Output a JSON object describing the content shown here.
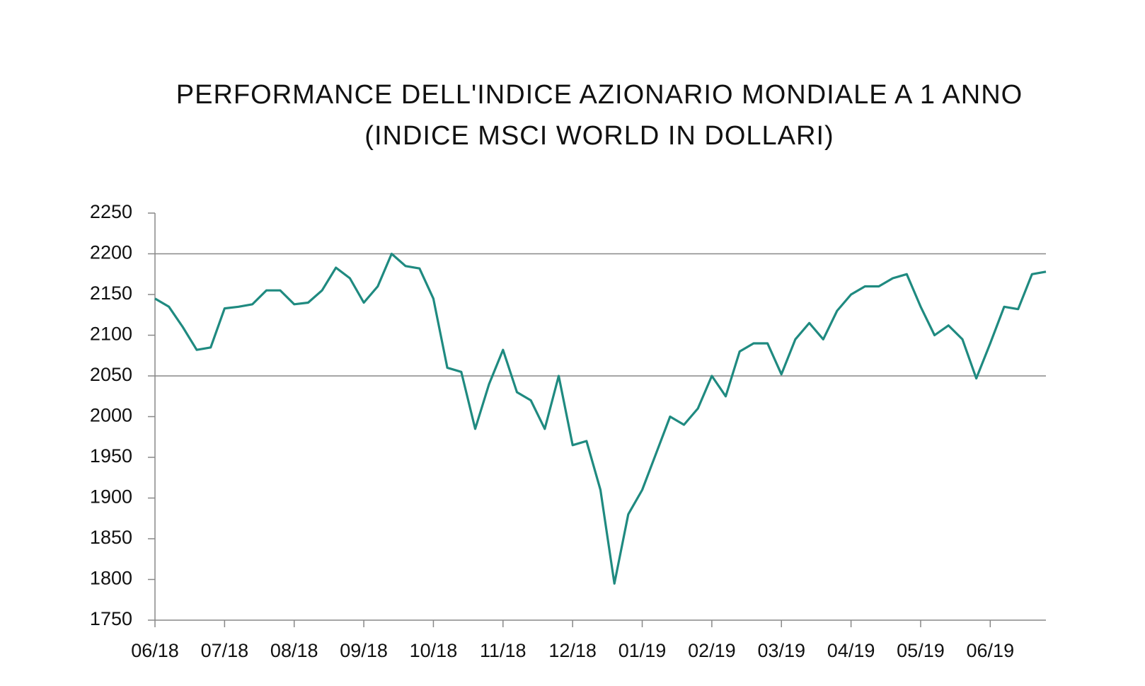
{
  "chart_data": {
    "type": "line",
    "title": "PERFORMANCE DELL'INDICE AZIONARIO MONDIALE A 1 ANNO",
    "subtitle": "(INDICE MSCI WORLD IN DOLLARI)",
    "categories": [
      "06/18",
      null,
      null,
      null,
      null,
      "07/18",
      null,
      null,
      null,
      null,
      "08/18",
      null,
      null,
      null,
      null,
      "09/18",
      null,
      null,
      null,
      null,
      "10/18",
      null,
      null,
      null,
      null,
      "11/18",
      null,
      null,
      null,
      null,
      "12/18",
      null,
      null,
      null,
      null,
      "01/19",
      null,
      null,
      null,
      null,
      "02/19",
      null,
      null,
      null,
      null,
      "03/19",
      null,
      null,
      null,
      null,
      "04/19",
      null,
      null,
      null,
      null,
      "05/19",
      null,
      null,
      null,
      null,
      "06/19",
      null,
      null,
      null,
      null
    ],
    "series": [
      {
        "name": "MSCI World",
        "color": "#1f8a80",
        "values": [
          2145,
          2135,
          2110,
          2082,
          2085,
          2133,
          2135,
          2138,
          2155,
          2155,
          2138,
          2140,
          2155,
          2183,
          2170,
          2140,
          2160,
          2200,
          2185,
          2182,
          2145,
          2060,
          2055,
          1985,
          2040,
          2082,
          2030,
          2020,
          1985,
          2050,
          1965,
          1970,
          1910,
          1795,
          1880,
          1910,
          1955,
          2000,
          1990,
          2010,
          2050,
          2025,
          2080,
          2090,
          2090,
          2052,
          2095,
          2115,
          2095,
          2130,
          2150,
          2160,
          2160,
          2170,
          2175,
          2135,
          2100,
          2112,
          2095,
          2047,
          2090,
          2135,
          2132,
          2175,
          2178
        ]
      }
    ],
    "ylim": [
      1750,
      2250
    ],
    "yticks": [
      1750,
      1800,
      1850,
      1900,
      1950,
      2000,
      2050,
      2100,
      2150,
      2200,
      2250
    ],
    "hlines": [
      2050,
      2200
    ]
  }
}
